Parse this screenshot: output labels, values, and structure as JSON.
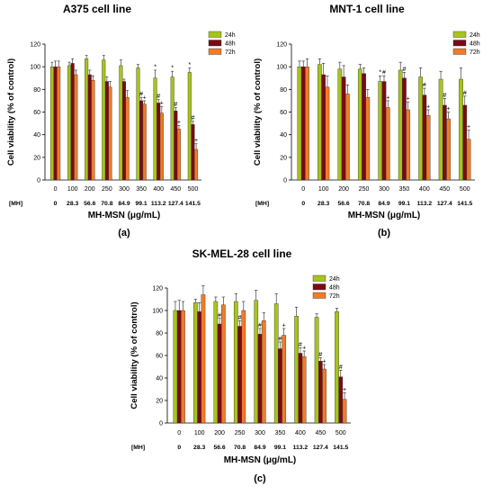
{
  "chart_data": [
    {
      "type": "bar",
      "title": "A375 cell line",
      "ylabel": "Cell viability (% of control)",
      "xlabel": "MH-MSN (μg/mL)",
      "mh_label": "[MH]",
      "panel_label": "(a)",
      "ylim": [
        0,
        120
      ],
      "yticks": [
        "0",
        "20",
        "40",
        "60",
        "80",
        "100",
        "120"
      ],
      "categories": [
        "0",
        "100",
        "200",
        "250",
        "300",
        "350",
        "400",
        "450",
        "500"
      ],
      "mh_values": [
        "0",
        "28.3",
        "56.6",
        "70.8",
        "84.9",
        "99.1",
        "113.2",
        "127.4",
        "141.5"
      ],
      "series": [
        {
          "name": "24h",
          "color": "#a8c41a",
          "values": [
            100,
            101,
            107,
            106,
            101,
            99,
            90,
            91,
            95
          ],
          "errors": [
            4,
            3,
            3,
            4,
            5,
            3,
            7,
            5,
            4
          ],
          "marks": [
            "",
            "",
            "",
            "",
            "",
            "",
            "*",
            "*",
            "*"
          ]
        },
        {
          "name": "48h",
          "color": "#7a0a14",
          "values": [
            100,
            103,
            93,
            87,
            87,
            70,
            68,
            61,
            49
          ],
          "errors": [
            5,
            4,
            4,
            4,
            2,
            3,
            3,
            3,
            3
          ],
          "marks": [
            "",
            "",
            "",
            "",
            "",
            "#",
            "#",
            "#",
            "#"
          ]
        },
        {
          "name": "72h",
          "color": "#f07c28",
          "values": [
            100,
            93,
            88,
            82,
            73,
            67,
            59,
            45,
            27
          ],
          "errors": [
            5,
            4,
            4,
            5,
            6,
            3,
            6,
            3,
            5
          ],
          "marks": [
            "",
            "",
            "",
            "",
            "",
            "+",
            "+",
            "+",
            "+"
          ]
        }
      ]
    },
    {
      "type": "bar",
      "title": "MNT-1 cell line",
      "ylabel": "Cell viability (% of control)",
      "xlabel": "MH-MSN (μg/mL)",
      "mh_label": "[MH]",
      "panel_label": "(b)",
      "ylim": [
        0,
        120
      ],
      "yticks": [
        "0",
        "20",
        "40",
        "60",
        "80",
        "100",
        "120"
      ],
      "categories": [
        "0",
        "100",
        "200",
        "250",
        "300",
        "350",
        "400",
        "450",
        "500"
      ],
      "mh_values": [
        "0",
        "28.3",
        "56.6",
        "70.8",
        "84.9",
        "99.1",
        "113.2",
        "127.4",
        "141.5"
      ],
      "series": [
        {
          "name": "24h",
          "color": "#a8c41a",
          "values": [
            100,
            102,
            98,
            98,
            87,
            97,
            91,
            89,
            89
          ],
          "errors": [
            5,
            5,
            6,
            4,
            5,
            7,
            8,
            7,
            10
          ],
          "marks": [
            "",
            "",
            "",
            "",
            "*",
            "",
            "",
            "",
            ""
          ]
        },
        {
          "name": "48h",
          "color": "#7a0a14",
          "values": [
            100,
            93,
            91,
            94,
            87,
            90,
            75,
            66,
            66
          ],
          "errors": [
            5,
            10,
            10,
            5,
            5,
            5,
            6,
            6,
            8
          ],
          "marks": [
            "",
            "",
            "",
            "",
            "#",
            "#",
            "#",
            "#",
            "#"
          ]
        },
        {
          "name": "72h",
          "color": "#f07c28",
          "values": [
            100,
            82,
            76,
            73,
            64,
            62,
            57,
            54,
            36
          ],
          "errors": [
            7,
            10,
            8,
            7,
            6,
            7,
            5,
            6,
            8
          ],
          "marks": [
            "",
            "",
            "",
            "",
            "+",
            "+",
            "+",
            "+",
            "+"
          ]
        }
      ]
    },
    {
      "type": "bar",
      "title": "SK-MEL-28 cell line",
      "ylabel": "Cell viability (% of control)",
      "xlabel": "MH-MSN (μg/mL)",
      "mh_label": "[MH]",
      "panel_label": "(c)",
      "ylim": [
        0,
        120
      ],
      "yticks": [
        "0",
        "20",
        "40",
        "60",
        "80",
        "100",
        "120"
      ],
      "categories": [
        "0",
        "100",
        "200",
        "250",
        "300",
        "350",
        "400",
        "450",
        "500"
      ],
      "mh_values": [
        "0",
        "28.3",
        "56.6",
        "70.8",
        "84.9",
        "99.1",
        "113.2",
        "127.4",
        "141.5"
      ],
      "series": [
        {
          "name": "24h",
          "color": "#a8c41a",
          "values": [
            100,
            107,
            108,
            108,
            109,
            106,
            95,
            94,
            99
          ],
          "errors": [
            8,
            3,
            4,
            7,
            9,
            9,
            8,
            3,
            3
          ],
          "marks": [
            "",
            "",
            "",
            "",
            "",
            "",
            "",
            "",
            ""
          ]
        },
        {
          "name": "48h",
          "color": "#7a0a14",
          "values": [
            100,
            99,
            88,
            86,
            79,
            66,
            62,
            55,
            41
          ],
          "errors": [
            9,
            8,
            5,
            5,
            5,
            6,
            5,
            3,
            6
          ],
          "marks": [
            "",
            "",
            "#",
            "#",
            "#",
            "#",
            "#",
            "#",
            "#"
          ]
        },
        {
          "name": "72h",
          "color": "#f07c28",
          "values": [
            100,
            114,
            105,
            100,
            91,
            78,
            59,
            48,
            21
          ],
          "errors": [
            8,
            8,
            7,
            8,
            7,
            6,
            5,
            4,
            6
          ],
          "marks": [
            "",
            "",
            "",
            "",
            "",
            "+",
            "+",
            "+",
            "+"
          ]
        }
      ]
    }
  ]
}
